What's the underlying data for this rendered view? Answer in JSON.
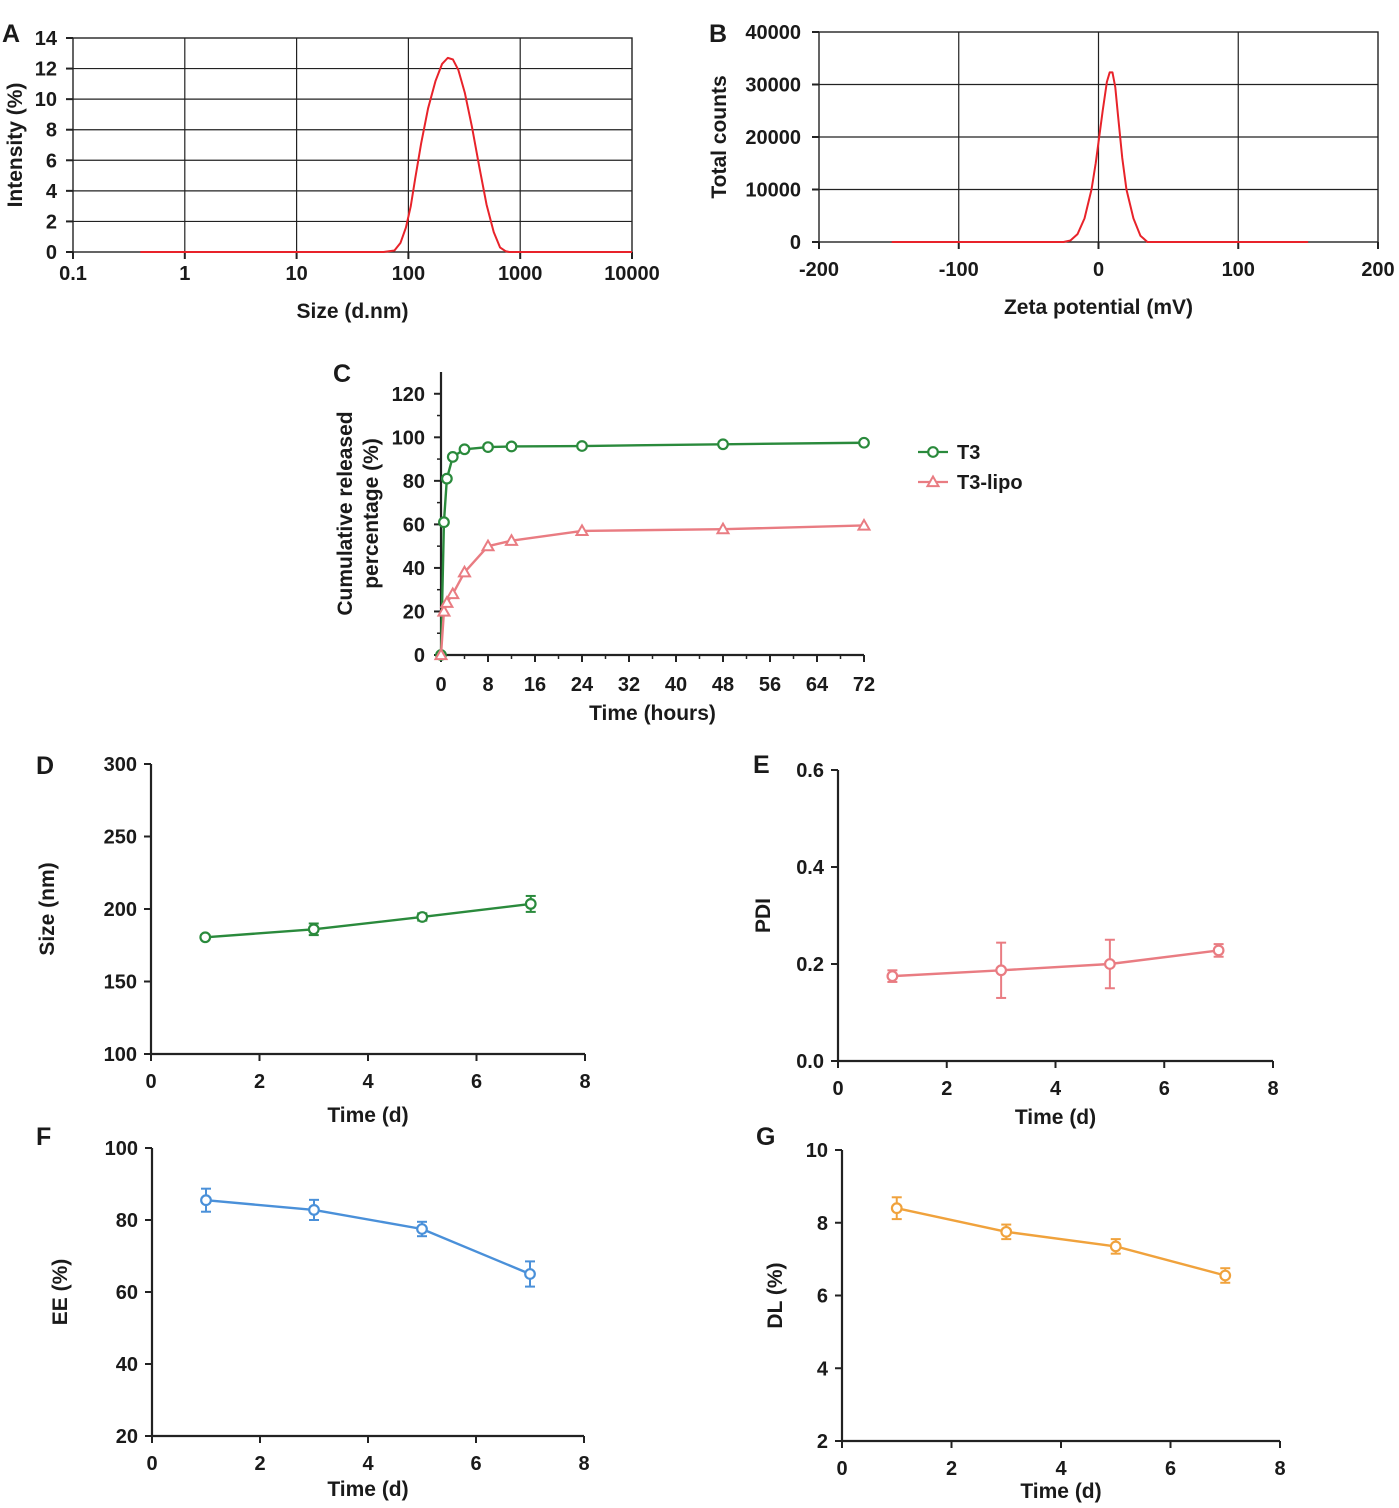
{
  "chart_data": [
    {
      "id": "A",
      "panel_label": "A",
      "type": "line",
      "xscale": "log",
      "xlabel": "Size (d.nm)",
      "ylabel": "Intensity (%)",
      "xlim": [
        0.1,
        10000
      ],
      "ylim": [
        0,
        14
      ],
      "xticks": [
        0.1,
        1,
        10,
        100,
        1000,
        10000
      ],
      "xtick_labels": [
        "0.1",
        "1",
        "10",
        "100",
        "1000",
        "10000"
      ],
      "yticks": [
        0,
        2,
        4,
        6,
        8,
        10,
        12,
        14
      ],
      "ytick_labels": [
        "0",
        "2",
        "4",
        "6",
        "8",
        "10",
        "12",
        "14"
      ],
      "grid": true,
      "color": "#e8232a",
      "series": [
        {
          "name": "Intensity",
          "x": [
            0.4,
            60,
            75,
            85,
            95,
            105,
            115,
            130,
            150,
            175,
            200,
            225,
            250,
            280,
            320,
            370,
            430,
            500,
            580,
            660,
            740,
            800,
            10000
          ],
          "y": [
            0,
            0,
            0.1,
            0.6,
            1.6,
            3.0,
            4.8,
            7.1,
            9.4,
            11.2,
            12.3,
            12.7,
            12.6,
            11.9,
            10.4,
            8.2,
            5.6,
            3.1,
            1.3,
            0.3,
            0.05,
            0,
            0
          ]
        }
      ]
    },
    {
      "id": "B",
      "panel_label": "B",
      "type": "line",
      "xlabel": "Zeta potential (mV)",
      "ylabel": "Total counts",
      "xlim": [
        -200,
        200
      ],
      "ylim": [
        0,
        40000
      ],
      "xticks": [
        -200,
        -100,
        0,
        100,
        200
      ],
      "xtick_labels": [
        "-200",
        "-100",
        "0",
        "100",
        "200"
      ],
      "yticks": [
        0,
        10000,
        20000,
        30000,
        40000
      ],
      "ytick_labels": [
        "0",
        "10000",
        "20000",
        "30000",
        "40000"
      ],
      "grid": true,
      "color": "#e8232a",
      "series": [
        {
          "name": "Total counts",
          "x": [
            -148,
            -25,
            -20,
            -15,
            -10,
            -5,
            -2,
            0,
            3,
            6,
            8,
            10,
            12,
            14,
            17,
            20,
            25,
            30,
            35,
            150
          ],
          "y": [
            0,
            0,
            300,
            1500,
            4500,
            10000,
            15000,
            19000,
            25000,
            30500,
            32300,
            32300,
            29500,
            24000,
            16000,
            10000,
            4500,
            1200,
            0,
            0
          ]
        }
      ]
    },
    {
      "id": "C",
      "panel_label": "C",
      "type": "line",
      "xlabel": "Time (hours)",
      "ylabel": "Cumulative released percentage (%)",
      "ylabel_lines": [
        "Cumulative released",
        "percentage (%)"
      ],
      "xlim": [
        0,
        72
      ],
      "ylim": [
        0,
        130
      ],
      "xticks": [
        0,
        8,
        16,
        24,
        32,
        40,
        48,
        56,
        64,
        72
      ],
      "xtick_labels": [
        "0",
        "8",
        "16",
        "24",
        "32",
        "40",
        "48",
        "56",
        "64",
        "72"
      ],
      "yticks": [
        0,
        20,
        40,
        60,
        80,
        100,
        120
      ],
      "ytick_labels": [
        "0",
        "20",
        "40",
        "60",
        "80",
        "100",
        "120"
      ],
      "grid": false,
      "legend": "right",
      "series": [
        {
          "name": "T3",
          "marker": "circle",
          "color": "#2a8a3c",
          "x": [
            0,
            0.5,
            1,
            2,
            4,
            8,
            12,
            24,
            48,
            72
          ],
          "y": [
            0,
            61,
            81,
            91,
            94.5,
            95.5,
            95.8,
            96,
            96.8,
            97.5
          ]
        },
        {
          "name": "T3-lipo",
          "marker": "triangle",
          "color": "#e97c82",
          "x": [
            0,
            0.5,
            1,
            2,
            4,
            8,
            12,
            24,
            48,
            72
          ],
          "y": [
            0,
            20,
            24,
            28,
            38,
            50,
            52.5,
            57,
            57.8,
            59.5
          ]
        }
      ]
    },
    {
      "id": "D",
      "panel_label": "D",
      "type": "line",
      "xlabel": "Time (d)",
      "ylabel": "Size (nm)",
      "xlim": [
        0,
        8
      ],
      "ylim": [
        100,
        300
      ],
      "xticks": [
        0,
        2,
        4,
        6,
        8
      ],
      "xtick_labels": [
        "0",
        "2",
        "4",
        "6",
        "8"
      ],
      "yticks": [
        100,
        150,
        200,
        250,
        300
      ],
      "ytick_labels": [
        "100",
        "150",
        "200",
        "250",
        "300"
      ],
      "grid": false,
      "series": [
        {
          "name": "Size",
          "marker": "circle",
          "color": "#2a8a3c",
          "x": [
            1,
            3,
            5,
            7
          ],
          "y": [
            180.5,
            186,
            194.5,
            203.5
          ],
          "err": [
            1.5,
            4,
            2.5,
            5.5
          ]
        }
      ]
    },
    {
      "id": "E",
      "panel_label": "E",
      "type": "line",
      "xlabel": "Time (d)",
      "ylabel": "PDI",
      "xlim": [
        0,
        8
      ],
      "ylim": [
        0,
        0.6
      ],
      "xticks": [
        0,
        2,
        4,
        6,
        8
      ],
      "xtick_labels": [
        "0",
        "2",
        "4",
        "6",
        "8"
      ],
      "yticks": [
        0,
        0.2,
        0.4,
        0.6
      ],
      "ytick_labels": [
        "0.0",
        "0.2",
        "0.4",
        "0.6"
      ],
      "grid": false,
      "series": [
        {
          "name": "PDI",
          "marker": "circle",
          "color": "#e97c82",
          "x": [
            1,
            3,
            5,
            7
          ],
          "y": [
            0.175,
            0.187,
            0.2,
            0.228
          ],
          "err": [
            0.012,
            0.057,
            0.05,
            0.013
          ]
        }
      ]
    },
    {
      "id": "F",
      "panel_label": "F",
      "type": "line",
      "xlabel": "Time (d)",
      "ylabel": "EE  (%)",
      "xlim": [
        0,
        8
      ],
      "ylim": [
        20,
        100
      ],
      "xticks": [
        0,
        2,
        4,
        6,
        8
      ],
      "xtick_labels": [
        "0",
        "2",
        "4",
        "6",
        "8"
      ],
      "yticks": [
        20,
        40,
        60,
        80,
        100
      ],
      "ytick_labels": [
        "20",
        "40",
        "60",
        "80",
        "100"
      ],
      "grid": false,
      "series": [
        {
          "name": "EE",
          "marker": "circle",
          "color": "#4a90d9",
          "x": [
            1,
            3,
            5,
            7
          ],
          "y": [
            85.5,
            82.8,
            77.5,
            65
          ],
          "err": [
            3.2,
            2.8,
            2.0,
            3.5
          ]
        }
      ]
    },
    {
      "id": "G",
      "panel_label": "G",
      "type": "line",
      "xlabel": "Time (d)",
      "ylabel": "DL  (%)",
      "xlim": [
        0,
        8
      ],
      "ylim": [
        2,
        10
      ],
      "xticks": [
        0,
        2,
        4,
        6,
        8
      ],
      "xtick_labels": [
        "0",
        "2",
        "4",
        "6",
        "8"
      ],
      "yticks": [
        2,
        4,
        6,
        8,
        10
      ],
      "ytick_labels": [
        "2",
        "4",
        "6",
        "8",
        "10"
      ],
      "grid": false,
      "series": [
        {
          "name": "DL",
          "marker": "circle",
          "color": "#f0a23c",
          "x": [
            1,
            3,
            5,
            7
          ],
          "y": [
            8.4,
            7.75,
            7.35,
            6.55
          ],
          "err": [
            0.3,
            0.2,
            0.2,
            0.2
          ]
        }
      ]
    }
  ]
}
